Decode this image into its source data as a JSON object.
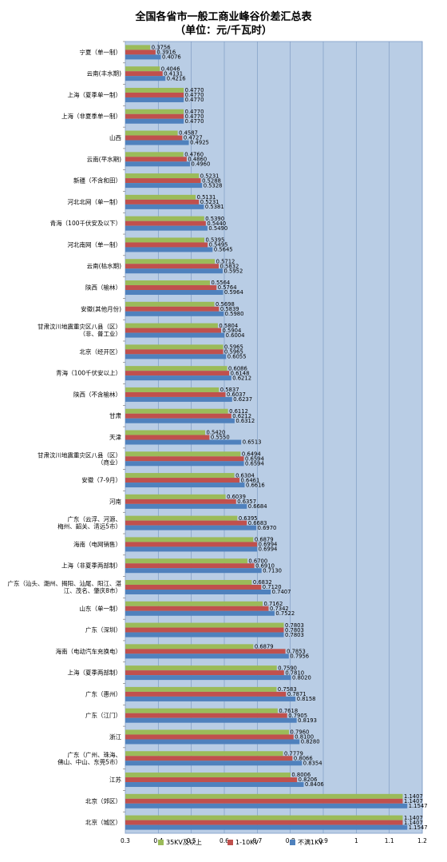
{
  "chart_data": {
    "type": "bar",
    "orientation": "horizontal",
    "title": "全国各省市一般工商业峰谷价差汇总表",
    "subtitle": "（单位：元/千瓦时）",
    "xlim": [
      0.3,
      1.2
    ],
    "xticks": [
      "0.3",
      "0.4",
      "0.5",
      "0.6",
      "0.7",
      "0.8",
      "0.9",
      "1",
      "1.1",
      "1.2"
    ],
    "grid": true,
    "legend_position": "bottom",
    "categories": [
      [
        "宁夏（单一制）"
      ],
      [
        "云南(丰水期)"
      ],
      [
        "上海（夏季单一制）"
      ],
      [
        "上海（非夏季单一制）"
      ],
      [
        "山西"
      ],
      [
        "云南(平水期)"
      ],
      [
        "新疆（不含和田）"
      ],
      [
        "河北北网（单一制）"
      ],
      [
        "青海（100千伏安及以下）"
      ],
      [
        "河北南网（单一制）"
      ],
      [
        "云南(枯水期)"
      ],
      [
        "陕西（榆林）"
      ],
      [
        "安徽(其他月份)"
      ],
      [
        "甘肃汶川地震重灾区八县（区）",
        "（非、普工业）"
      ],
      [
        "北京（经开区）"
      ],
      [
        "青海（100千伏安以上）"
      ],
      [
        "陕西（不含榆林）"
      ],
      [
        "甘肃"
      ],
      [
        "天津"
      ],
      [
        "甘肃汶川地震重灾区八县（区）",
        "（商业）"
      ],
      [
        "安徽（7-9月）"
      ],
      [
        "河南"
      ],
      [
        "广东（云浮、河源、",
        "梅州、韶关、清远5市）"
      ],
      [
        "海南（电网销售）"
      ],
      [
        "上海（非夏季两部制）"
      ],
      [
        "广东（汕头、潮州、揭阳、汕尾、阳江、湛",
        "江、茂名、肇庆8市）"
      ],
      [
        "山东（单一制）"
      ],
      [
        "广东（深圳）"
      ],
      [
        "海南（电动汽车充换电）"
      ],
      [
        "上海（夏季两部制）"
      ],
      [
        "广东（惠州）"
      ],
      [
        "广东（江门）"
      ],
      [
        "浙江"
      ],
      [
        "广东（广州、珠海、",
        "佛山、中山、东莞5市）"
      ],
      [
        "江苏"
      ],
      [
        "北京（郊区）"
      ],
      [
        "北京（城区）"
      ]
    ],
    "series": [
      {
        "name": "35KV及以上",
        "color": "#9BBB59",
        "values": [
          0.3756,
          0.4046,
          0.477,
          0.477,
          0.4587,
          0.476,
          0.5231,
          0.5131,
          0.539,
          0.5395,
          0.5712,
          0.5564,
          0.5698,
          0.5804,
          0.5965,
          0.6086,
          0.5837,
          0.6112,
          0.542,
          0.6494,
          0.6304,
          0.6039,
          0.6395,
          0.6879,
          0.67,
          0.6832,
          0.7162,
          0.7803,
          0.6879,
          0.759,
          0.7583,
          0.7618,
          0.796,
          0.7779,
          0.8006,
          1.1407,
          1.1407
        ]
      },
      {
        "name": "1-10KV",
        "color": "#C0504D",
        "values": [
          0.3916,
          0.4131,
          0.477,
          0.477,
          0.4727,
          0.486,
          0.5288,
          0.5231,
          0.544,
          0.5495,
          0.5832,
          0.5764,
          0.5839,
          0.5904,
          0.5965,
          0.6148,
          0.6037,
          0.6212,
          0.555,
          0.6594,
          0.6461,
          0.6357,
          0.6683,
          0.6994,
          0.691,
          0.712,
          0.7342,
          0.7803,
          0.7853,
          0.781,
          0.7871,
          0.7905,
          0.81,
          0.8066,
          0.8206,
          1.1407,
          1.1407
        ]
      },
      {
        "name": "不满1KV",
        "color": "#4F81BD",
        "values": [
          0.4076,
          0.4216,
          0.477,
          0.477,
          0.4925,
          0.496,
          0.5328,
          0.5381,
          0.549,
          0.5645,
          0.5952,
          0.5964,
          0.598,
          0.6004,
          0.6055,
          0.6212,
          0.6237,
          0.6312,
          0.6513,
          0.6594,
          0.6616,
          0.6684,
          0.697,
          0.6994,
          0.713,
          0.7407,
          0.7522,
          0.7803,
          0.7956,
          0.802,
          0.8158,
          0.8193,
          0.828,
          0.8354,
          0.8406,
          1.1547,
          1.1547
        ]
      }
    ]
  },
  "colors": {
    "plot_background": "#B9CDE5",
    "gridline": "#7F9CC4"
  }
}
